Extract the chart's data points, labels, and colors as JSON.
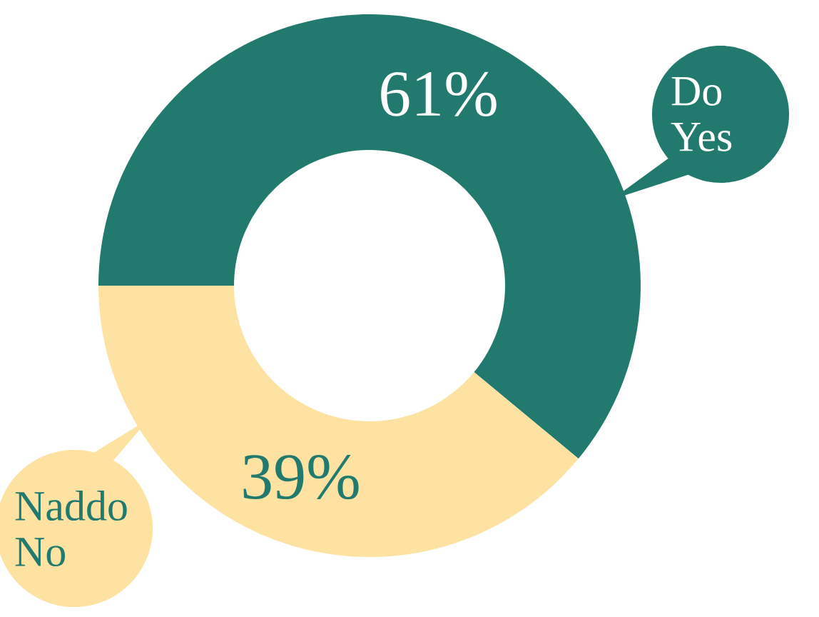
{
  "chart_data": {
    "type": "donut",
    "categories": [
      "Do Yes",
      "Naddo No"
    ],
    "values": [
      61,
      39
    ],
    "colors": [
      "#227a6e",
      "#fde2a2"
    ],
    "value_labels": [
      "61%",
      "39%"
    ]
  }
}
